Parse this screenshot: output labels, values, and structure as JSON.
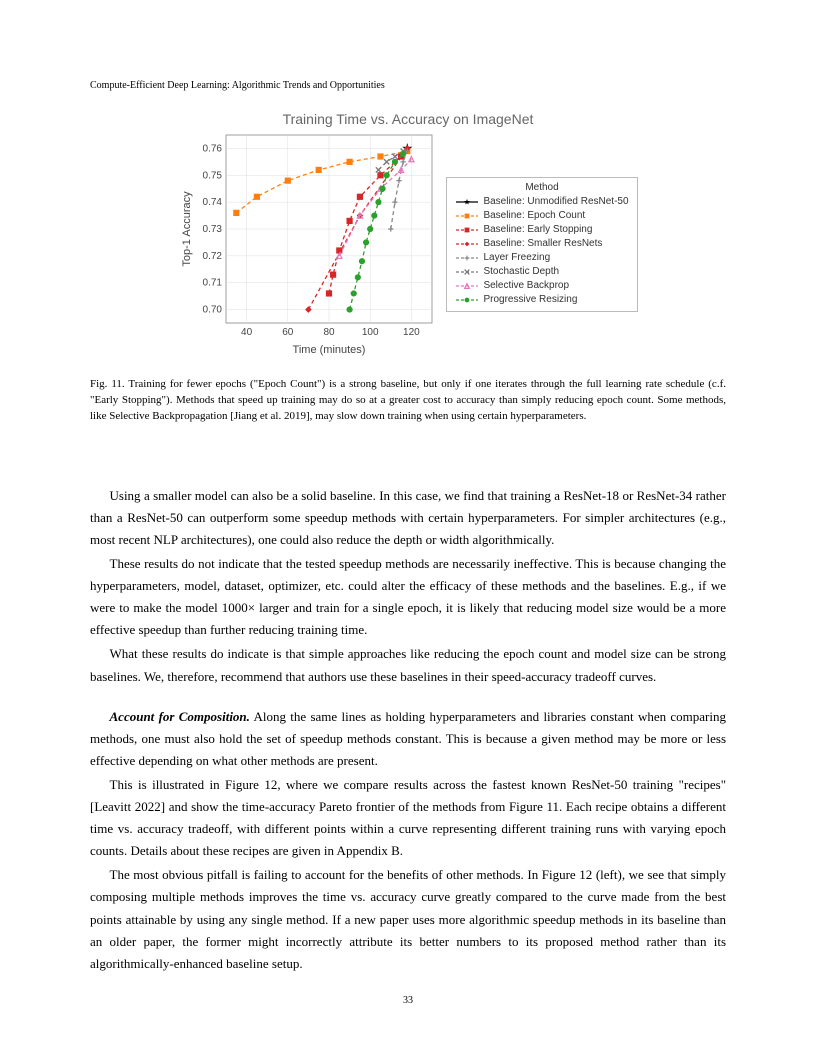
{
  "running_head": "Compute-Efficient Deep Learning: Algorithmic Trends and Opportunities",
  "page_number": "33",
  "chart": {
    "title": "Training Time vs. Accuracy on ImageNet",
    "xlabel": "Time (minutes)",
    "ylabel": "Top-1 Accuracy",
    "xlim": [
      30,
      130
    ],
    "ylim": [
      0.695,
      0.765
    ],
    "xticks": [
      40,
      60,
      80,
      100,
      120
    ],
    "yticks": [
      0.7,
      0.71,
      0.72,
      0.73,
      0.74,
      0.75,
      0.76
    ],
    "grid_color": "#dddddd",
    "background_color": "#ffffff",
    "tick_fontsize": 10,
    "label_fontsize": 11,
    "title_fontsize": 14,
    "legend_title": "Method",
    "series": [
      {
        "name": "Baseline: Unmodified ResNet-50",
        "color": "#000000",
        "marker": "star",
        "dash": "solid",
        "x": [
          118
        ],
        "y": [
          0.76
        ]
      },
      {
        "name": "Baseline: Epoch Count",
        "color": "#ff7f0e",
        "marker": "square",
        "dash": "dash",
        "x": [
          35,
          45,
          60,
          75,
          90,
          105,
          118
        ],
        "y": [
          0.736,
          0.742,
          0.748,
          0.752,
          0.755,
          0.757,
          0.759
        ]
      },
      {
        "name": "Baseline: Early Stopping",
        "color": "#d62728",
        "marker": "square",
        "dash": "dash",
        "x": [
          80,
          82,
          85,
          90,
          95,
          105,
          115
        ],
        "y": [
          0.706,
          0.713,
          0.722,
          0.733,
          0.742,
          0.75,
          0.757
        ]
      },
      {
        "name": "Baseline: Smaller ResNets",
        "color": "#d62728",
        "marker": "diamond",
        "dash": "dash",
        "x": [
          70,
          95,
          118
        ],
        "y": [
          0.7,
          0.735,
          0.76
        ]
      },
      {
        "name": "Layer Freezing",
        "color": "#888888",
        "marker": "plus",
        "dash": "dash",
        "x": [
          110,
          112,
          114,
          116,
          118
        ],
        "y": [
          0.73,
          0.74,
          0.748,
          0.755,
          0.759
        ]
      },
      {
        "name": "Stochastic Depth",
        "color": "#777777",
        "marker": "x",
        "dash": "dash",
        "x": [
          104,
          108,
          112,
          116
        ],
        "y": [
          0.752,
          0.755,
          0.757,
          0.759
        ]
      },
      {
        "name": "Selective Backprop",
        "color": "#e377c2",
        "marker": "triangle",
        "dash": "dash",
        "x": [
          85,
          95,
          105,
          115,
          120
        ],
        "y": [
          0.72,
          0.735,
          0.745,
          0.752,
          0.756
        ]
      },
      {
        "name": "Progressive Resizing",
        "color": "#2ca02c",
        "marker": "circle",
        "dash": "dash",
        "x": [
          90,
          92,
          94,
          96,
          98,
          100,
          102,
          104,
          106,
          108,
          112,
          116
        ],
        "y": [
          0.7,
          0.706,
          0.712,
          0.718,
          0.725,
          0.73,
          0.735,
          0.74,
          0.745,
          0.75,
          0.755,
          0.758
        ]
      }
    ]
  },
  "caption_label": "Fig. 11.",
  "caption_text": "Training for fewer epochs (\"Epoch Count\") is a strong baseline, but only if one iterates through the full learning rate schedule (c.f. \"Early Stopping\"). Methods that speed up training may do so at a greater cost to accuracy than simply reducing epoch count. Some methods, like Selective Backpropagation [Jiang et al. 2019], may slow down training when using certain hyperparameters.",
  "paragraphs": {
    "p1": "Using a smaller model can also be a solid baseline. In this case, we find that training a ResNet-18 or ResNet-34 rather than a ResNet-50 can outperform some speedup methods with certain hyperparameters. For simpler architectures (e.g., most recent NLP architectures), one could also reduce the depth or width algorithmically.",
    "p2": "These results do not indicate that the tested speedup methods are necessarily ineffective. This is because changing the hyperparameters, model, dataset, optimizer, etc. could alter the efficacy of these methods and the baselines. E.g., if we were to make the model 1000× larger and train for a single epoch, it is likely that reducing model size would be a more effective speedup than further reducing training time.",
    "p3": "What these results do indicate is that simple approaches like reducing the epoch count and model size can be strong baselines. We, therefore, recommend that authors use these baselines in their speed-accuracy tradeoff curves.",
    "p4_head": "Account for Composition.",
    "p4_body": "  Along the same lines as holding hyperparameters and libraries constant when comparing methods, one must also hold the set of speedup methods constant. This is because a given method may be more or less effective depending on what other methods are present.",
    "p5": "This is illustrated in Figure 12, where we compare results across the fastest known ResNet-50 training \"recipes\" [Leavitt 2022] and show the time-accuracy Pareto frontier of the methods from Figure 11. Each recipe obtains a different time vs. accuracy tradeoff, with different points within a curve representing different training runs with varying epoch counts. Details about these recipes are given in Appendix B.",
    "p6": "The most obvious pitfall is failing to account for the benefits of other methods. In Figure 12 (left), we see that simply composing multiple methods improves the time vs. accuracy curve greatly compared to the curve made from the best points attainable by using any single method. If a new paper uses more algorithmic speedup methods in its baseline than an older paper, the former might incorrectly attribute its better numbers to its proposed method rather than its algorithmically-enhanced baseline setup."
  }
}
